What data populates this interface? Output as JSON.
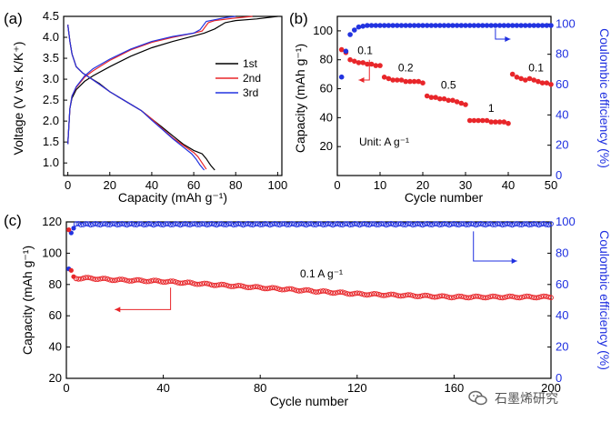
{
  "chart_data": [
    {
      "panel": "(a)",
      "type": "line",
      "xlabel": "Capacity (mAh g⁻¹)",
      "ylabel": "Voltage (V vs. K/K⁺)",
      "xlim": [
        -2,
        102
      ],
      "ylim": [
        0.7,
        4.5
      ],
      "xticks": [
        0,
        20,
        40,
        60,
        80,
        100
      ],
      "yticks": [
        1.0,
        1.5,
        2.0,
        2.5,
        3.0,
        3.5,
        4.0,
        4.5
      ],
      "legend_position": "right",
      "series": [
        {
          "name": "1st",
          "color": "#000000",
          "discharge": [
            [
              0,
              4.3
            ],
            [
              1,
              3.9
            ],
            [
              2,
              3.6
            ],
            [
              4,
              3.3
            ],
            [
              7,
              3.15
            ],
            [
              10,
              3.05
            ],
            [
              15,
              2.9
            ],
            [
              20,
              2.7
            ],
            [
              25,
              2.55
            ],
            [
              30,
              2.4
            ],
            [
              35,
              2.25
            ],
            [
              40,
              2.05
            ],
            [
              45,
              1.85
            ],
            [
              50,
              1.65
            ],
            [
              55,
              1.45
            ],
            [
              60,
              1.3
            ],
            [
              64,
              1.22
            ],
            [
              66,
              1.1
            ],
            [
              68,
              0.95
            ],
            [
              70,
              0.83
            ]
          ],
          "charge": [
            [
              0,
              1.45
            ],
            [
              0.5,
              1.9
            ],
            [
              1,
              2.3
            ],
            [
              2,
              2.55
            ],
            [
              4,
              2.75
            ],
            [
              8,
              2.95
            ],
            [
              12,
              3.08
            ],
            [
              20,
              3.3
            ],
            [
              30,
              3.55
            ],
            [
              40,
              3.75
            ],
            [
              50,
              3.9
            ],
            [
              60,
              4.03
            ],
            [
              65,
              4.1
            ],
            [
              70,
              4.2
            ],
            [
              75,
              4.35
            ],
            [
              80,
              4.4
            ],
            [
              90,
              4.44
            ],
            [
              100,
              4.5
            ]
          ]
        },
        {
          "name": "2nd",
          "color": "#e8262a",
          "discharge": [
            [
              0,
              4.3
            ],
            [
              1,
              3.9
            ],
            [
              2,
              3.6
            ],
            [
              4,
              3.3
            ],
            [
              7,
              3.15
            ],
            [
              10,
              3.05
            ],
            [
              15,
              2.88
            ],
            [
              20,
              2.7
            ],
            [
              25,
              2.55
            ],
            [
              30,
              2.4
            ],
            [
              35,
              2.25
            ],
            [
              40,
              2.05
            ],
            [
              45,
              1.82
            ],
            [
              50,
              1.6
            ],
            [
              55,
              1.42
            ],
            [
              60,
              1.25
            ],
            [
              62,
              1.15
            ],
            [
              64,
              1.0
            ],
            [
              66,
              0.85
            ]
          ],
          "charge": [
            [
              0,
              1.45
            ],
            [
              0.5,
              1.9
            ],
            [
              1,
              2.3
            ],
            [
              2,
              2.6
            ],
            [
              4,
              2.8
            ],
            [
              8,
              3.05
            ],
            [
              12,
              3.2
            ],
            [
              20,
              3.45
            ],
            [
              30,
              3.7
            ],
            [
              40,
              3.88
            ],
            [
              50,
              4.0
            ],
            [
              60,
              4.1
            ],
            [
              64,
              4.15
            ],
            [
              67,
              4.35
            ],
            [
              70,
              4.4
            ],
            [
              78,
              4.45
            ],
            [
              88,
              4.5
            ]
          ]
        },
        {
          "name": "3rd",
          "color": "#2233e0",
          "discharge": [
            [
              0,
              4.3
            ],
            [
              1,
              3.9
            ],
            [
              2,
              3.6
            ],
            [
              4,
              3.3
            ],
            [
              7,
              3.15
            ],
            [
              10,
              3.05
            ],
            [
              15,
              2.88
            ],
            [
              20,
              2.7
            ],
            [
              25,
              2.55
            ],
            [
              30,
              2.4
            ],
            [
              35,
              2.25
            ],
            [
              40,
              2.02
            ],
            [
              45,
              1.8
            ],
            [
              50,
              1.58
            ],
            [
              55,
              1.38
            ],
            [
              59,
              1.22
            ],
            [
              61,
              1.1
            ],
            [
              63,
              0.95
            ],
            [
              65,
              0.83
            ]
          ],
          "charge": [
            [
              0,
              1.45
            ],
            [
              0.5,
              1.9
            ],
            [
              1,
              2.3
            ],
            [
              2,
              2.6
            ],
            [
              4,
              2.82
            ],
            [
              8,
              3.08
            ],
            [
              12,
              3.25
            ],
            [
              20,
              3.48
            ],
            [
              30,
              3.72
            ],
            [
              40,
              3.9
            ],
            [
              50,
              4.02
            ],
            [
              60,
              4.1
            ],
            [
              63,
              4.18
            ],
            [
              66,
              4.38
            ],
            [
              70,
              4.42
            ],
            [
              75,
              4.47
            ],
            [
              80,
              4.5
            ]
          ]
        }
      ]
    },
    {
      "panel": "(b)",
      "type": "scatter",
      "xlabel": "Cycle number",
      "ylabel": "Capacity (mAh g⁻¹)",
      "y2label": "Coulombic efficiency (%)",
      "xlim": [
        0,
        50
      ],
      "ylim": [
        0,
        110
      ],
      "y2lim": [
        0,
        105
      ],
      "xticks": [
        0,
        10,
        20,
        30,
        40,
        50
      ],
      "yticks": [
        20,
        40,
        60,
        80,
        100
      ],
      "y2ticks": [
        0,
        20,
        40,
        60,
        80,
        100
      ],
      "unit_annotation": "Unit: A g⁻¹",
      "rate_labels": [
        {
          "text": "0.1",
          "x": 6.5,
          "y": 84
        },
        {
          "text": "0.2",
          "x": 16,
          "y": 72
        },
        {
          "text": "0.5",
          "x": 26,
          "y": 60
        },
        {
          "text": "1",
          "x": 36,
          "y": 44
        },
        {
          "text": "0.1",
          "x": 46.5,
          "y": 72
        }
      ],
      "series": [
        {
          "name": "Capacity",
          "axis": "left",
          "color": "#e8262a",
          "x": [
            1,
            2,
            3,
            4,
            5,
            6,
            7,
            8,
            9,
            10,
            11,
            12,
            13,
            14,
            15,
            16,
            17,
            18,
            19,
            20,
            21,
            22,
            23,
            24,
            25,
            26,
            27,
            28,
            29,
            30,
            31,
            32,
            33,
            34,
            35,
            36,
            37,
            38,
            39,
            40,
            41,
            42,
            43,
            44,
            45,
            46,
            47,
            48,
            49,
            50
          ],
          "y": [
            87,
            85,
            80,
            79,
            78,
            78,
            77,
            77,
            76,
            76,
            68,
            67,
            66,
            66,
            66,
            65,
            65,
            65,
            65,
            64,
            55,
            54,
            54,
            53,
            53,
            52,
            52,
            51,
            50,
            49,
            38,
            38,
            38,
            38,
            38,
            37,
            37,
            37,
            37,
            36,
            70,
            68,
            67,
            66,
            67,
            66,
            65,
            64,
            64,
            63
          ]
        },
        {
          "name": "Coulombic efficiency",
          "axis": "right",
          "color": "#2233e0",
          "x": [
            1,
            2,
            3,
            4,
            5,
            6,
            7,
            8,
            9,
            10,
            11,
            12,
            13,
            14,
            15,
            16,
            17,
            18,
            19,
            20,
            21,
            22,
            23,
            24,
            25,
            26,
            27,
            28,
            29,
            30,
            31,
            32,
            33,
            34,
            35,
            36,
            37,
            38,
            39,
            40,
            41,
            42,
            43,
            44,
            45,
            46,
            47,
            48,
            49,
            50
          ],
          "y": [
            65,
            82,
            93,
            96,
            98,
            98.5,
            99,
            99,
            99,
            99,
            99,
            99,
            99,
            99,
            99,
            99,
            99,
            99,
            99,
            99,
            99,
            99,
            99,
            99,
            99,
            99,
            99,
            99,
            99,
            99,
            99,
            99,
            99,
            99,
            99,
            99,
            99,
            99,
            99,
            99,
            99,
            99,
            99,
            99,
            99,
            99,
            99,
            99,
            99,
            99
          ]
        }
      ]
    },
    {
      "panel": "(c)",
      "type": "scatter",
      "xlabel": "Cycle number",
      "ylabel": "Capacity (mAh g⁻¹)",
      "y2label": "Coulombic efficiency (%)",
      "xlim": [
        0,
        200
      ],
      "ylim": [
        20,
        120
      ],
      "y2lim": [
        0,
        100
      ],
      "xticks": [
        0,
        40,
        80,
        120,
        160,
        200
      ],
      "yticks": [
        20,
        40,
        60,
        80,
        100,
        120
      ],
      "y2ticks": [
        0,
        20,
        40,
        60,
        80,
        100
      ],
      "annotation": "0.1 A g⁻¹",
      "series": [
        {
          "name": "Capacity",
          "axis": "left",
          "color": "#e8262a",
          "first_points": [
            [
              1,
              115
            ],
            [
              2,
              89
            ],
            [
              3,
              85
            ]
          ],
          "trend": [
            [
              3,
              84
            ],
            [
              10,
              84
            ],
            [
              20,
              83
            ],
            [
              30,
              82.5
            ],
            [
              40,
              82
            ],
            [
              50,
              81
            ],
            [
              60,
              80
            ],
            [
              70,
              79
            ],
            [
              80,
              78
            ],
            [
              90,
              77
            ],
            [
              100,
              76
            ],
            [
              110,
              75
            ],
            [
              120,
              74
            ],
            [
              130,
              73.5
            ],
            [
              140,
              73
            ],
            [
              150,
              72.5
            ],
            [
              160,
              72
            ],
            [
              170,
              72
            ],
            [
              180,
              72
            ],
            [
              190,
              72
            ],
            [
              200,
              72
            ]
          ]
        },
        {
          "name": "Coulombic efficiency",
          "axis": "right",
          "color": "#2233e0",
          "first_points": [
            [
              1,
              70
            ],
            [
              2,
              93
            ],
            [
              3,
              96
            ]
          ],
          "plateau": 98.5
        }
      ]
    }
  ],
  "watermark": {
    "text": "石墨烯研究",
    "icon": "wechat-icon"
  }
}
